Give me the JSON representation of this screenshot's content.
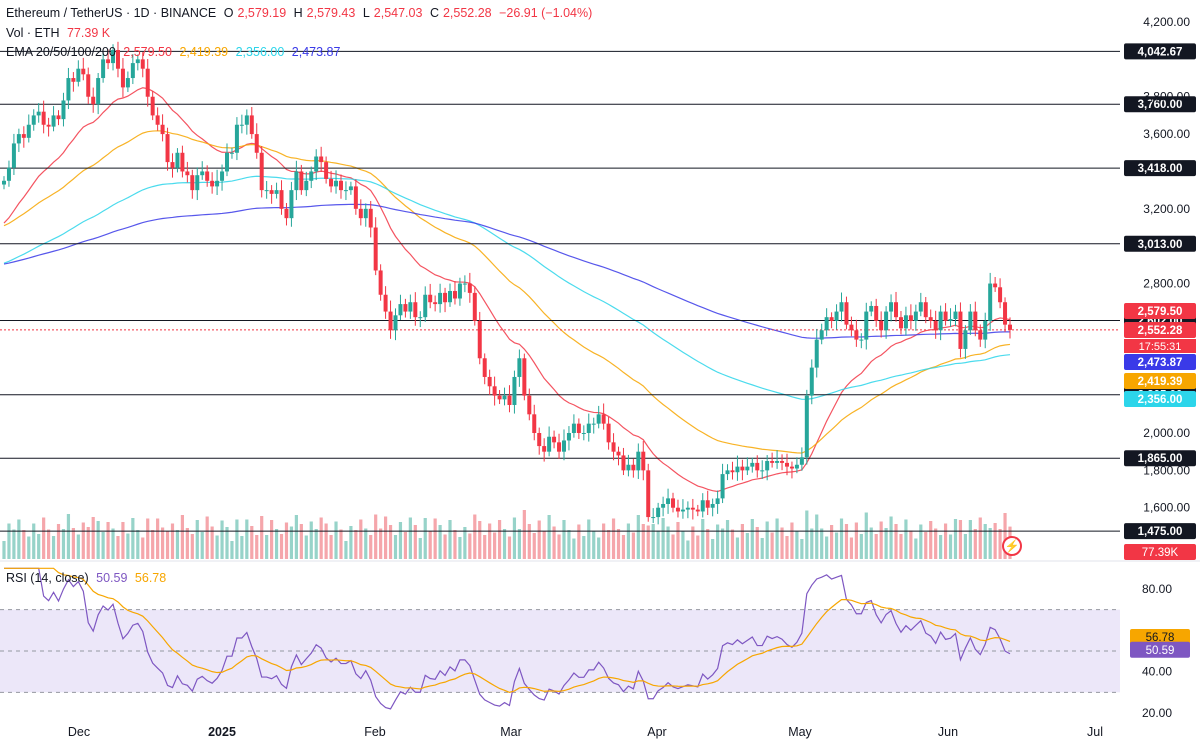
{
  "header": {
    "symbol": "Ethereum / TetherUS · 1D · BINANCE",
    "o_label": "O",
    "o_value": "2,579.19",
    "h_label": "H",
    "h_value": "2,579.43",
    "l_label": "L",
    "l_value": "2,547.03",
    "c_label": "C",
    "c_value": "2,552.28",
    "change": "−26.91 (−1.04%)",
    "vol_label": "Vol · ETH",
    "vol_value": "77.39 K",
    "ema_label": "EMA 20/50/100/200",
    "ema20": "2,579.50",
    "ema50": "2,419.39",
    "ema100": "2,356.00",
    "ema200": "2,473.87",
    "rsi_label": "RSI (14, close)",
    "rsi_value": "50.59",
    "rsi_ma": "56.78"
  },
  "colors": {
    "up": "#26a69a",
    "down": "#f23645",
    "vol_up": "#97d3c9",
    "vol_down": "#f5a6ab",
    "ema20": "#f23645",
    "ema50": "#f7a600",
    "ema100": "#2cd5ea",
    "ema200": "#3a3ae8",
    "rsi": "#7e57c2",
    "rsi_ma": "#f7a600",
    "rsi_band": "#ece7f9"
  },
  "icons": {
    "lightning": "lightning-icon"
  },
  "chart_data": {
    "type": "candlestick",
    "price_axis_ticks": [
      "4,200.00",
      "3,800.00",
      "3,600.00",
      "3,200.00",
      "2,800.00",
      "2,000.00",
      "1,800.00",
      "1,600.00"
    ],
    "price_axis_values": [
      4200,
      3800,
      3600,
      3200,
      2800,
      2000,
      1800,
      1600
    ],
    "x_axis_labels": [
      "Dec",
      "2025",
      "Feb",
      "Mar",
      "Apr",
      "May",
      "Jun",
      "Jul"
    ],
    "x_axis_dates": [
      "2024-12-01",
      "2025-01-01",
      "2025-02-01",
      "2025-03-01",
      "2025-04-01",
      "2025-05-01",
      "2025-06-01",
      "2025-07-01"
    ],
    "horizontal_levels": [
      {
        "value": 4042.67,
        "label": "4,042.67"
      },
      {
        "value": 3760.0,
        "label": "3,760.00"
      },
      {
        "value": 3418.0,
        "label": "3,418.00"
      },
      {
        "value": 3013.0,
        "label": "3,013.00"
      },
      {
        "value": 2602.0,
        "label": "2,602.00"
      },
      {
        "value": 2205.0,
        "label": "2,205.00"
      },
      {
        "value": 1865.0,
        "label": "1,865.00"
      },
      {
        "value": 1475.0,
        "label": "1,475.00"
      }
    ],
    "price_tags": [
      {
        "name": "ema20-tag",
        "value": 2579.5,
        "label": "2,579.50",
        "color": "#f23645"
      },
      {
        "name": "last-price-tag",
        "value": 2552.28,
        "label": "2,552.28",
        "color": "#f23645"
      },
      {
        "name": "ema200-tag",
        "value": 2473.87,
        "label": "2,473.87",
        "color": "#3a3ae8"
      },
      {
        "name": "ema50-tag",
        "value": 2419.39,
        "label": "2,419.39",
        "color": "#f7a600"
      },
      {
        "name": "ema100-tag",
        "value": 2356.0,
        "label": "2,356.00",
        "color": "#2cd5ea"
      }
    ],
    "countdown": "17:55:31",
    "volume_tag": "77.39K",
    "rsi_axis_ticks": [
      "80.00",
      "40.00",
      "20.00"
    ],
    "rsi_axis_values": [
      80,
      40,
      20
    ],
    "rsi_band": [
      30,
      70
    ],
    "rsi_tags": [
      {
        "value": 56.78,
        "label": "56.78",
        "color": "#f7a600"
      },
      {
        "value": 50.59,
        "label": "50.59",
        "color": "#7e57c2"
      }
    ],
    "closes": [
      3350,
      3420,
      3550,
      3600,
      3580,
      3650,
      3700,
      3720,
      3650,
      3640,
      3700,
      3680,
      3780,
      3900,
      3880,
      3950,
      3920,
      3800,
      3760,
      3900,
      4000,
      3980,
      4050,
      3950,
      3850,
      3900,
      3980,
      4000,
      3950,
      3800,
      3700,
      3650,
      3600,
      3450,
      3420,
      3500,
      3400,
      3380,
      3300,
      3380,
      3400,
      3350,
      3320,
      3350,
      3400,
      3500,
      3500,
      3650,
      3650,
      3700,
      3600,
      3500,
      3300,
      3300,
      3280,
      3300,
      3200,
      3150,
      3300,
      3400,
      3300,
      3350,
      3400,
      3480,
      3450,
      3360,
      3320,
      3350,
      3300,
      3300,
      3320,
      3200,
      3150,
      3200,
      3100,
      2870,
      2740,
      2650,
      2550,
      2630,
      2690,
      2650,
      2700,
      2620,
      2620,
      2740,
      2700,
      2690,
      2750,
      2700,
      2760,
      2720,
      2800,
      2800,
      2750,
      2600,
      2400,
      2300,
      2250,
      2200,
      2180,
      2200,
      2150,
      2300,
      2400,
      2200,
      2100,
      2000,
      1930,
      1900,
      1980,
      1950,
      1900,
      1960,
      2000,
      2050,
      2000,
      2000,
      2050,
      2050,
      2100,
      2050,
      1950,
      1900,
      1880,
      1800,
      1830,
      1800,
      1900,
      1800,
      1550,
      1550,
      1600,
      1620,
      1650,
      1600,
      1580,
      1590,
      1600,
      1590,
      1580,
      1640,
      1600,
      1620,
      1650,
      1780,
      1800,
      1790,
      1820,
      1800,
      1820,
      1840,
      1800,
      1800,
      1850,
      1840,
      1850,
      1840,
      1820,
      1810,
      1830,
      1870,
      2200,
      2350,
      2500,
      2550,
      2620,
      2600,
      2650,
      2700,
      2580,
      2550,
      2500,
      2500,
      2650,
      2680,
      2600,
      2550,
      2650,
      2700,
      2620,
      2560,
      2630,
      2600,
      2650,
      2700,
      2620,
      2600,
      2550,
      2650,
      2600,
      2610,
      2650,
      2450,
      2550,
      2650,
      2550,
      2500,
      2600,
      2800,
      2780,
      2700,
      2580,
      2552
    ],
    "ema20": [
      3050,
      3100,
      3150,
      3200,
      3250,
      3320,
      3400,
      3480,
      3550,
      3600,
      3650,
      3700,
      3750,
      3800,
      3840,
      3880,
      3900,
      3910,
      3900,
      3880,
      3850,
      3820,
      3790,
      3760,
      3720,
      3690,
      3660,
      3630,
      3600,
      3580,
      3560,
      3550,
      3540,
      3530,
      3520,
      3500,
      3480,
      3460,
      3440,
      3420,
      3400,
      3390,
      3380,
      3380,
      3400,
      3420,
      3440,
      3460,
      3470,
      3480,
      3470,
      3450,
      3420,
      3400,
      3380,
      3370,
      3360,
      3350,
      3340,
      3340,
      3340,
      3340,
      3330,
      3320,
      3310,
      3300,
      3270,
      3230,
      3170,
      3100,
      3020,
      2950,
      2880,
      2820,
      2780,
      2740,
      2720,
      2700,
      2690,
      2690,
      2700,
      2710,
      2710,
      2700,
      2680,
      2650,
      2600,
      2540,
      2480,
      2420,
      2370,
      2320,
      2280,
      2240,
      2200,
      2160,
      2120,
      2090,
      2060,
      2040,
      2020,
      2010,
      2000,
      1990,
      1980,
      1970,
      1960,
      1940,
      1920,
      1880,
      1840,
      1800,
      1770,
      1740,
      1720,
      1700,
      1690,
      1680,
      1670,
      1665,
      1665,
      1670,
      1680,
      1695,
      1710,
      1725,
      1740,
      1750,
      1760,
      1770,
      1780,
      1790,
      1800,
      1810,
      1820,
      1900,
      2000,
      2120,
      2220,
      2310,
      2380,
      2440,
      2480,
      2510,
      2530,
      2540,
      2550,
      2555,
      2560,
      2560,
      2565,
      2570,
      2575,
      2580,
      2585,
      2590,
      2590,
      2590,
      2590,
      2585,
      2570,
      2560,
      2555,
      2560,
      2580,
      2600,
      2600,
      2595,
      2590,
      2580
    ]
  }
}
